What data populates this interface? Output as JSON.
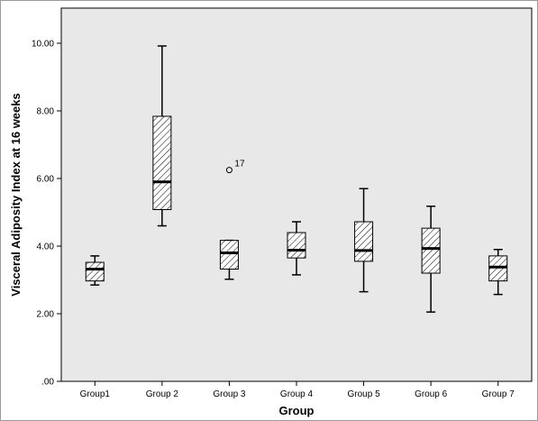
{
  "chart_data": {
    "type": "boxplot",
    "xlabel": "Group",
    "ylabel": "Visceral Adiposity Index at 16 weeks",
    "ylim": [
      0,
      11.2
    ],
    "yticks": [
      0,
      2,
      4,
      6,
      8,
      10
    ],
    "ytick_labels": [
      ".00",
      "2.00",
      "4.00",
      "6.00",
      "8.00",
      "10.00"
    ],
    "grid": false,
    "box_pattern": "diagonal-hatch",
    "box_fill": "#ffffff",
    "plot_background": "#e8e8e8",
    "categories": [
      "Group1",
      "Group 2",
      "Group 3",
      "Group 4",
      "Group 5",
      "Group 6",
      "Group 7"
    ],
    "boxes": [
      {
        "whisker_low": 2.85,
        "q1": 2.97,
        "median": 3.32,
        "q3": 3.52,
        "whisker_high": 3.71,
        "outliers": []
      },
      {
        "whisker_low": 4.6,
        "q1": 5.08,
        "median": 5.9,
        "q3": 7.84,
        "whisker_high": 9.92,
        "outliers": []
      },
      {
        "whisker_low": 3.02,
        "q1": 3.32,
        "median": 3.8,
        "q3": 4.17,
        "whisker_high": 4.17,
        "outliers": [
          {
            "value": 6.25,
            "label": "17"
          }
        ]
      },
      {
        "whisker_low": 3.15,
        "q1": 3.65,
        "median": 3.88,
        "q3": 4.4,
        "whisker_high": 4.72,
        "outliers": []
      },
      {
        "whisker_low": 2.65,
        "q1": 3.55,
        "median": 3.87,
        "q3": 4.72,
        "whisker_high": 5.7,
        "outliers": []
      },
      {
        "whisker_low": 2.05,
        "q1": 3.2,
        "median": 3.93,
        "q3": 4.53,
        "whisker_high": 5.18,
        "outliers": []
      },
      {
        "whisker_low": 2.57,
        "q1": 2.97,
        "median": 3.38,
        "q3": 3.71,
        "whisker_high": 3.9,
        "outliers": []
      }
    ]
  }
}
